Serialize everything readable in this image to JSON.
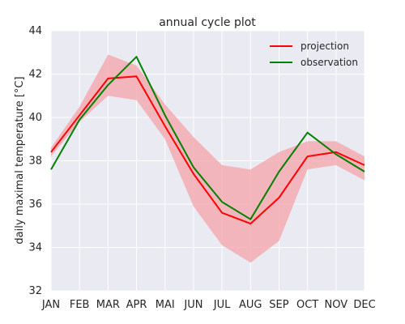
{
  "chart_data": {
    "type": "line",
    "title": "annual cycle plot",
    "xlabel": "",
    "ylabel": "daily maximal temperature [°C]",
    "categories": [
      "JAN",
      "FEB",
      "MAR",
      "APR",
      "MAI",
      "JUN",
      "JUL",
      "AUG",
      "SEP",
      "OCT",
      "NOV",
      "DEC"
    ],
    "ylim": [
      32,
      44
    ],
    "yticks": [
      32,
      34,
      36,
      38,
      40,
      42,
      44
    ],
    "grid": true,
    "legend_position": "top-right",
    "band": {
      "color": "#f4a7ad",
      "lower": [
        38.2,
        39.8,
        41.0,
        40.8,
        39.0,
        35.9,
        34.1,
        33.3,
        34.3,
        37.6,
        37.8,
        37.1
      ],
      "upper": [
        38.6,
        40.5,
        42.9,
        42.4,
        40.6,
        39.1,
        37.8,
        37.6,
        38.4,
        38.9,
        38.9,
        38.2
      ]
    },
    "series": [
      {
        "name": "projection",
        "color": "#ff0000",
        "values": [
          38.4,
          40.1,
          41.8,
          41.9,
          39.6,
          37.4,
          35.6,
          35.1,
          36.3,
          38.2,
          38.4,
          37.8
        ]
      },
      {
        "name": "observation",
        "color": "#008000",
        "values": [
          37.6,
          39.9,
          41.5,
          42.8,
          40.1,
          37.7,
          36.1,
          35.3,
          37.5,
          39.3,
          38.3,
          37.5
        ]
      }
    ]
  }
}
